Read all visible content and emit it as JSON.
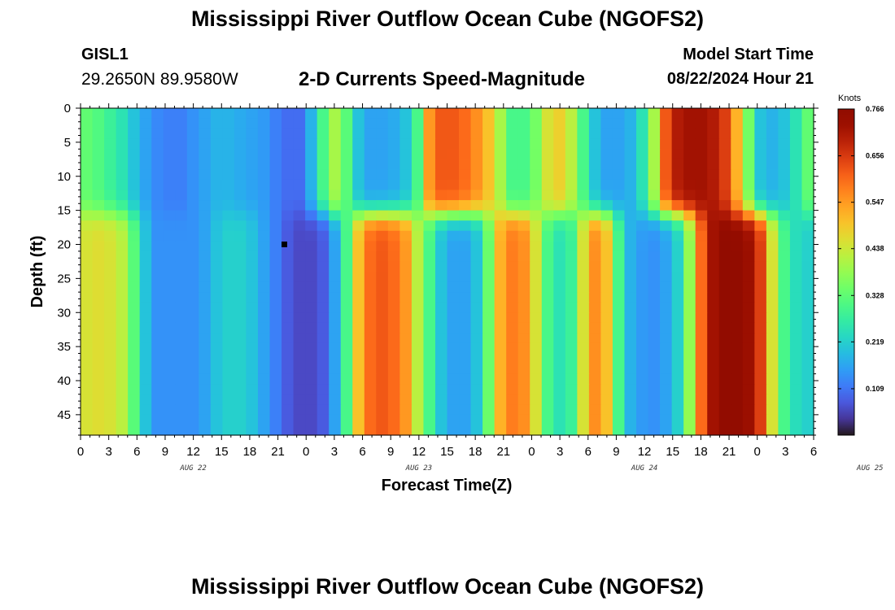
{
  "header": {
    "title": "Mississippi River Outflow Ocean Cube (NGOFS2)",
    "station_id": "GISL1",
    "station_coords": "29.2650N  89.9580W",
    "subtitle": "2-D Currents Speed-Magnitude",
    "model_start_label": "Model Start Time",
    "model_start_value": "08/22/2024 Hour 21"
  },
  "footer": {
    "title": "Mississippi River Outflow Ocean Cube (NGOFS2)"
  },
  "chart_data": {
    "type": "heatmap",
    "xlabel": "Forecast Time(Z)",
    "ylabel": "Depth (ft)",
    "x_range_hours": [
      0,
      78
    ],
    "x_ticks": [
      "0",
      "3",
      "6",
      "9",
      "12",
      "15",
      "18",
      "21",
      "0",
      "3",
      "6",
      "9",
      "12",
      "15",
      "18",
      "21",
      "0",
      "3",
      "6",
      "9",
      "12",
      "15",
      "18",
      "21",
      "0",
      "3",
      "6"
    ],
    "date_labels": [
      "AUG 22",
      "AUG 23",
      "AUG 24",
      "AUG 25"
    ],
    "y_ticks": [
      "0",
      "5",
      "10",
      "15",
      "20",
      "25",
      "30",
      "35",
      "40",
      "45"
    ],
    "ylim": [
      0,
      48
    ],
    "y_inverted": true,
    "colorbar": {
      "unit": "Knots",
      "range": [
        0,
        0.766
      ],
      "tick_labels": [
        "0.766",
        "0.656",
        "0.547",
        "0.438",
        "0.328",
        "0.219",
        "0.109"
      ],
      "colormap": "turbo"
    },
    "surface_layer_speed": [
      0.33,
      0.31,
      0.28,
      0.25,
      0.2,
      0.16,
      0.13,
      0.12,
      0.12,
      0.14,
      0.16,
      0.18,
      0.18,
      0.17,
      0.16,
      0.15,
      0.12,
      0.1,
      0.1,
      0.18,
      0.3,
      0.4,
      0.32,
      0.2,
      0.16,
      0.16,
      0.17,
      0.2,
      0.3,
      0.55,
      0.62,
      0.62,
      0.6,
      0.56,
      0.5,
      0.4,
      0.3,
      0.3,
      0.35,
      0.45,
      0.48,
      0.42,
      0.3,
      0.2,
      0.16,
      0.16,
      0.18,
      0.25,
      0.4,
      0.62,
      0.7,
      0.72,
      0.72,
      0.7,
      0.65,
      0.52,
      0.35,
      0.2,
      0.18,
      0.2,
      0.25,
      0.33
    ],
    "deep_layer_speed": [
      0.45,
      0.46,
      0.45,
      0.42,
      0.32,
      0.2,
      0.14,
      0.14,
      0.14,
      0.14,
      0.16,
      0.2,
      0.22,
      0.22,
      0.2,
      0.16,
      0.12,
      0.08,
      0.06,
      0.06,
      0.08,
      0.16,
      0.3,
      0.5,
      0.6,
      0.62,
      0.6,
      0.55,
      0.42,
      0.3,
      0.2,
      0.16,
      0.16,
      0.2,
      0.34,
      0.52,
      0.58,
      0.56,
      0.45,
      0.3,
      0.25,
      0.28,
      0.45,
      0.56,
      0.5,
      0.3,
      0.18,
      0.15,
      0.14,
      0.16,
      0.22,
      0.38,
      0.6,
      0.72,
      0.75,
      0.75,
      0.73,
      0.65,
      0.45,
      0.3,
      0.24,
      0.22
    ]
  }
}
